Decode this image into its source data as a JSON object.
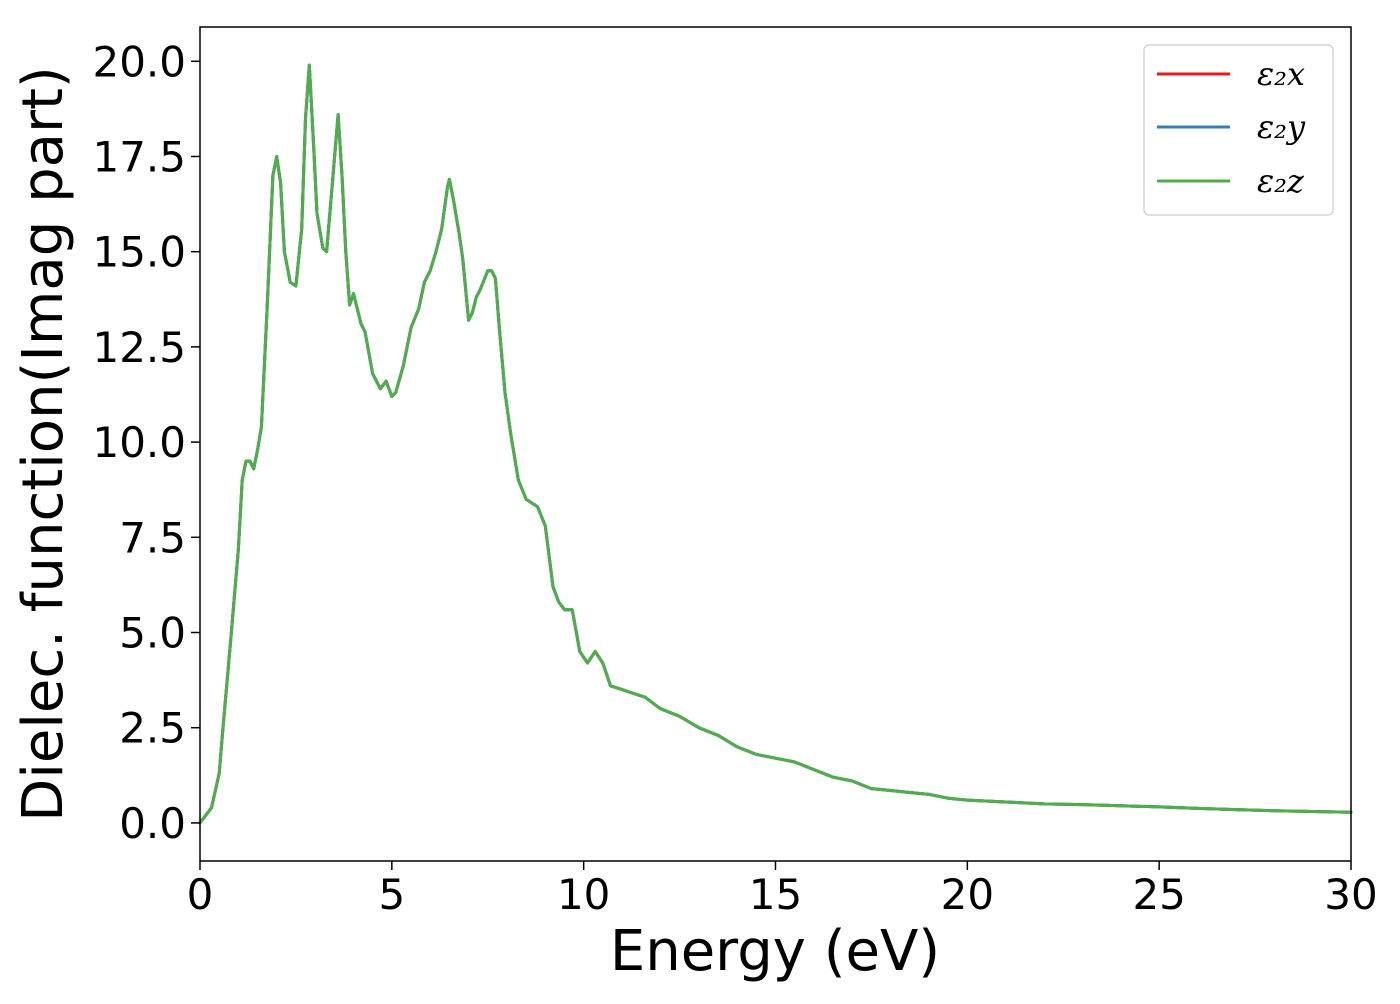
{
  "chart_data": {
    "type": "line",
    "xlabel": "Energy (eV)",
    "ylabel": "Dielec. function(Imag part)",
    "xlim": [
      0,
      30
    ],
    "ylim": [
      -1.0,
      20.9
    ],
    "xticks": [
      0,
      5,
      10,
      15,
      20,
      25,
      30
    ],
    "xtick_labels": [
      "0",
      "5",
      "10",
      "15",
      "20",
      "25",
      "30"
    ],
    "yticks": [
      0,
      2.5,
      5,
      7.5,
      10,
      12.5,
      15,
      17.5,
      20
    ],
    "ytick_labels": [
      "0.0",
      "2.5",
      "5.0",
      "7.5",
      "10.0",
      "12.5",
      "15.0",
      "17.5",
      "20.0"
    ],
    "grid": false,
    "legend_position": "top-right",
    "series": [
      {
        "name": "ε₂x",
        "color": "#e41a1c",
        "ref": "base"
      },
      {
        "name": "ε₂y",
        "color": "#377eb8",
        "ref": "base"
      },
      {
        "name": "ε₂z",
        "color": "#4daf4a",
        "ref": "base"
      }
    ],
    "x": [
      0,
      0.3,
      0.5,
      0.6,
      0.8,
      1.0,
      1.1,
      1.2,
      1.3,
      1.4,
      1.5,
      1.6,
      1.75,
      1.9,
      2.0,
      2.1,
      2.2,
      2.35,
      2.5,
      2.65,
      2.75,
      2.85,
      2.95,
      3.05,
      3.2,
      3.3,
      3.45,
      3.6,
      3.7,
      3.8,
      3.9,
      4.0,
      4.1,
      4.2,
      4.3,
      4.5,
      4.7,
      4.85,
      5.0,
      5.1,
      5.3,
      5.5,
      5.7,
      5.85,
      6.0,
      6.15,
      6.3,
      6.45,
      6.5,
      6.6,
      6.75,
      6.85,
      7.0,
      7.1,
      7.2,
      7.3,
      7.5,
      7.6,
      7.7,
      7.8,
      7.95,
      8.1,
      8.3,
      8.5,
      8.8,
      9.0,
      9.2,
      9.35,
      9.5,
      9.7,
      9.9,
      10.1,
      10.3,
      10.5,
      10.7,
      11.0,
      11.3,
      11.6,
      12.0,
      12.5,
      13.0,
      13.5,
      14.0,
      14.5,
      15.0,
      15.5,
      16.0,
      16.5,
      17.0,
      17.5,
      18.0,
      18.5,
      19.0,
      19.5,
      20.0,
      21.0,
      22.0,
      23.0,
      24.0,
      25.0,
      26.0,
      27.0,
      28.0,
      29.0,
      30.0
    ],
    "base": [
      0.0,
      0.4,
      1.3,
      2.5,
      4.8,
      7.2,
      9.0,
      9.5,
      9.5,
      9.3,
      9.8,
      10.4,
      13.5,
      17.0,
      17.5,
      16.8,
      15.0,
      14.2,
      14.1,
      15.6,
      18.5,
      19.9,
      18.0,
      16.0,
      15.1,
      15.0,
      16.8,
      18.6,
      17.0,
      15.0,
      13.6,
      13.9,
      13.5,
      13.1,
      12.9,
      11.8,
      11.4,
      11.6,
      11.2,
      11.3,
      12.0,
      13.0,
      13.5,
      14.2,
      14.5,
      15.0,
      15.6,
      16.7,
      16.9,
      16.4,
      15.5,
      14.8,
      13.2,
      13.4,
      13.8,
      14.0,
      14.5,
      14.5,
      14.3,
      13.0,
      11.3,
      10.2,
      9.0,
      8.5,
      8.3,
      7.8,
      6.2,
      5.8,
      5.6,
      5.6,
      4.5,
      4.2,
      4.5,
      4.2,
      3.6,
      3.5,
      3.4,
      3.3,
      3.0,
      2.8,
      2.5,
      2.3,
      2.0,
      1.8,
      1.7,
      1.6,
      1.4,
      1.2,
      1.1,
      0.9,
      0.85,
      0.8,
      0.75,
      0.65,
      0.6,
      0.55,
      0.5,
      0.48,
      0.45,
      0.42,
      0.38,
      0.35,
      0.32,
      0.3,
      0.28
    ]
  }
}
